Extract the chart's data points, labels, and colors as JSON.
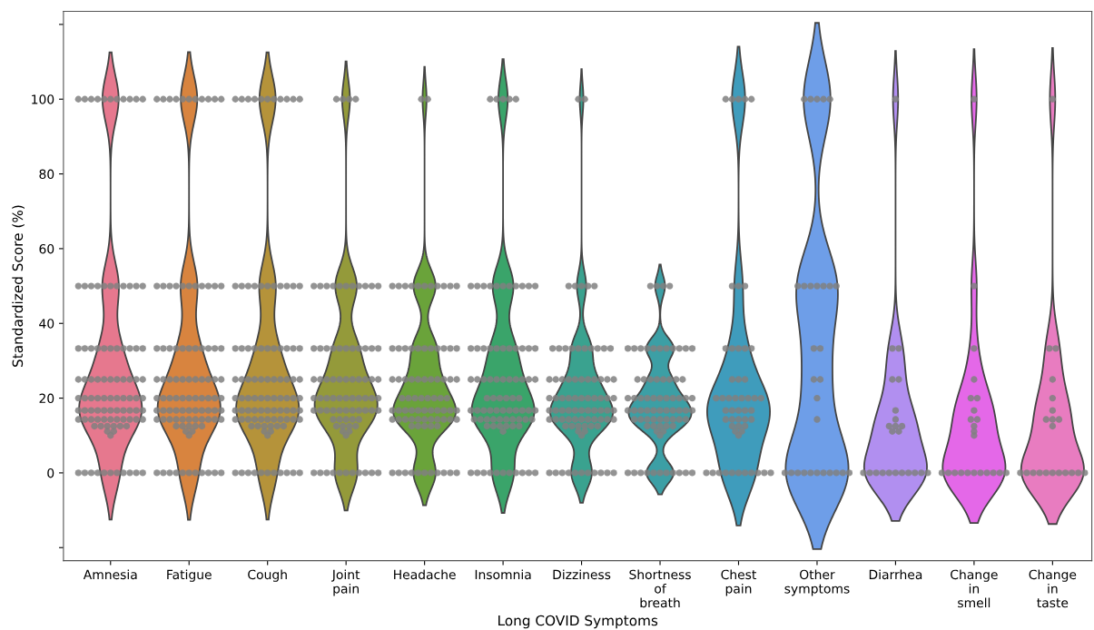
{
  "chart_data": {
    "type": "scatter",
    "xlabel": "Long COVID Symptoms",
    "ylabel": "Standardized Score (%)",
    "categories": [
      "Amnesia",
      "Fatigue",
      "Cough",
      "Joint\npain",
      "Headache",
      "Insomnia",
      "Dizziness",
      "Shortness\nof\nbreath",
      "Chest\npain",
      "Other\nsymptoms",
      "Diarrhea",
      "Change\nin\nsmell",
      "Change\nin\ntaste"
    ],
    "colors": [
      "#e6788e",
      "#d8843f",
      "#b5933a",
      "#949a3a",
      "#6aa33a",
      "#3aa46a",
      "#3aa28f",
      "#3c9fa5",
      "#3f9cbc",
      "#6e9ee8",
      "#b18ff0",
      "#e468e8",
      "#e87cc0"
    ],
    "ylim": [
      -23.5,
      123.5
    ],
    "yticks": [
      {
        "value": -20,
        "label": null
      },
      0,
      20,
      40,
      60,
      80,
      100,
      {
        "value": 120,
        "label": null
      }
    ],
    "grid": false,
    "series": [
      {
        "color": "#808080",
        "x": [
          "Amnesia",
          "Amnesia",
          "Amnesia",
          "Amnesia",
          "Amnesia",
          "Amnesia",
          "Amnesia",
          "Amnesia",
          "Amnesia",
          "Amnesia",
          "Amnesia",
          "Amnesia",
          "Amnesia",
          "Amnesia",
          "Amnesia",
          "Amnesia",
          "Amnesia",
          "Amnesia",
          "Amnesia",
          "Amnesia",
          "Amnesia",
          "Amnesia",
          "Amnesia",
          "Amnesia",
          "Amnesia",
          "Amnesia",
          "Amnesia",
          "Amnesia",
          "Amnesia",
          "Amnesia",
          "Amnesia",
          "Amnesia",
          "Amnesia",
          "Amnesia",
          "Amnesia",
          "Amnesia",
          "Amnesia",
          "Amnesia",
          "Amnesia",
          "Amnesia",
          "Amnesia",
          "Amnesia",
          "Amnesia",
          "Amnesia",
          "Amnesia",
          "Amnesia",
          "Amnesia",
          "Amnesia",
          "Amnesia",
          "Amnesia",
          "Amnesia",
          "Amnesia",
          "Amnesia",
          "Amnesia",
          "Amnesia",
          "Amnesia",
          "Amnesia",
          "Amnesia",
          "Amnesia",
          "Amnesia",
          "Amnesia",
          "Amnesia",
          "Amnesia",
          "Amnesia",
          "Amnesia",
          "Amnesia",
          "Amnesia",
          "Amnesia",
          "Amnesia",
          "Amnesia",
          "Amnesia",
          "Amnesia",
          "Amnesia",
          "Amnesia",
          "Amnesia",
          "Amnesia",
          "Amnesia",
          "Amnesia",
          "Amnesia",
          "Amnesia",
          "Amnesia",
          "Amnesia",
          "Amnesia",
          "Amnesia",
          "Amnesia",
          "Amnesia",
          "Amnesia",
          "Amnesia",
          "Amnesia",
          "Amnesia",
          "Amnesia",
          "Amnesia",
          "Amnesia",
          "Amnesia",
          "Amnesia",
          "Amnesia",
          "Amnesia"
        ],
        "values": [
          100,
          100,
          100,
          100,
          100,
          100,
          100,
          100,
          100,
          100,
          100,
          50,
          50,
          50,
          50,
          50,
          50,
          50,
          50,
          50,
          50,
          50,
          33.3,
          33.3,
          33.3,
          33.3,
          33.3,
          33.3,
          33.3,
          33.3,
          33.3,
          33.3,
          33.3,
          25,
          25,
          25,
          25,
          25,
          25,
          25,
          25,
          25,
          25,
          25,
          20,
          20,
          20,
          20,
          20,
          20,
          20,
          20,
          20,
          20,
          20,
          16.7,
          16.7,
          16.7,
          16.7,
          16.7,
          16.7,
          16.7,
          16.7,
          16.7,
          16.7,
          16.7,
          14.3,
          14.3,
          14.3,
          14.3,
          14.3,
          14.3,
          14.3,
          14.3,
          14.3,
          14.3,
          14.3,
          12.5,
          12.5,
          12.5,
          12.5,
          12.5,
          12.5,
          11.1,
          11.1,
          10,
          0,
          0,
          0,
          0,
          0,
          0,
          0,
          0,
          0,
          0,
          0
        ]
      },
      {
        "color": "#808080",
        "x": [
          "Fatigue",
          "Fatigue",
          "Fatigue",
          "Fatigue",
          "Fatigue",
          "Fatigue",
          "Fatigue",
          "Fatigue",
          "Fatigue",
          "Fatigue",
          "Fatigue",
          "Fatigue",
          "Fatigue",
          "Fatigue",
          "Fatigue",
          "Fatigue",
          "Fatigue",
          "Fatigue",
          "Fatigue",
          "Fatigue",
          "Fatigue",
          "Fatigue",
          "Fatigue",
          "Fatigue",
          "Fatigue",
          "Fatigue",
          "Fatigue",
          "Fatigue",
          "Fatigue",
          "Fatigue",
          "Fatigue",
          "Fatigue",
          "Fatigue",
          "Fatigue",
          "Fatigue",
          "Fatigue",
          "Fatigue",
          "Fatigue",
          "Fatigue",
          "Fatigue",
          "Fatigue",
          "Fatigue",
          "Fatigue",
          "Fatigue",
          "Fatigue",
          "Fatigue",
          "Fatigue",
          "Fatigue",
          "Fatigue",
          "Fatigue",
          "Fatigue",
          "Fatigue",
          "Fatigue",
          "Fatigue",
          "Fatigue",
          "Fatigue",
          "Fatigue",
          "Fatigue",
          "Fatigue",
          "Fatigue",
          "Fatigue",
          "Fatigue",
          "Fatigue",
          "Fatigue",
          "Fatigue",
          "Fatigue",
          "Fatigue",
          "Fatigue",
          "Fatigue",
          "Fatigue",
          "Fatigue",
          "Fatigue",
          "Fatigue",
          "Fatigue",
          "Fatigue",
          "Fatigue",
          "Fatigue",
          "Fatigue",
          "Fatigue",
          "Fatigue",
          "Fatigue",
          "Fatigue",
          "Fatigue",
          "Fatigue",
          "Fatigue",
          "Fatigue",
          "Fatigue",
          "Fatigue",
          "Fatigue",
          "Fatigue",
          "Fatigue",
          "Fatigue",
          "Fatigue",
          "Fatigue",
          "Fatigue",
          "Fatigue"
        ],
        "values": [
          100,
          100,
          100,
          100,
          100,
          100,
          100,
          100,
          100,
          100,
          100,
          50,
          50,
          50,
          50,
          50,
          50,
          50,
          50,
          50,
          50,
          50,
          33.3,
          33.3,
          33.3,
          33.3,
          33.3,
          33.3,
          33.3,
          33.3,
          33.3,
          33.3,
          33.3,
          25,
          25,
          25,
          25,
          25,
          25,
          25,
          25,
          25,
          25,
          25,
          20,
          20,
          20,
          20,
          20,
          20,
          20,
          20,
          20,
          20,
          20,
          16.7,
          16.7,
          16.7,
          16.7,
          16.7,
          16.7,
          16.7,
          16.7,
          16.7,
          16.7,
          16.7,
          14.3,
          14.3,
          14.3,
          14.3,
          14.3,
          14.3,
          14.3,
          14.3,
          14.3,
          14.3,
          14.3,
          12.5,
          12.5,
          12.5,
          12.5,
          12.5,
          11.1,
          11.1,
          10,
          0,
          0,
          0,
          0,
          0,
          0,
          0,
          0,
          0,
          0,
          0
        ]
      },
      {
        "color": "#808080",
        "x": [
          "Cough",
          "Cough",
          "Cough",
          "Cough",
          "Cough",
          "Cough",
          "Cough",
          "Cough",
          "Cough",
          "Cough",
          "Cough",
          "Cough",
          "Cough",
          "Cough",
          "Cough",
          "Cough",
          "Cough",
          "Cough",
          "Cough",
          "Cough",
          "Cough",
          "Cough",
          "Cough",
          "Cough",
          "Cough",
          "Cough",
          "Cough",
          "Cough",
          "Cough",
          "Cough",
          "Cough",
          "Cough",
          "Cough",
          "Cough",
          "Cough",
          "Cough",
          "Cough",
          "Cough",
          "Cough",
          "Cough",
          "Cough",
          "Cough",
          "Cough",
          "Cough",
          "Cough",
          "Cough",
          "Cough",
          "Cough",
          "Cough",
          "Cough",
          "Cough",
          "Cough",
          "Cough",
          "Cough",
          "Cough",
          "Cough",
          "Cough",
          "Cough",
          "Cough",
          "Cough",
          "Cough",
          "Cough",
          "Cough",
          "Cough",
          "Cough",
          "Cough",
          "Cough",
          "Cough",
          "Cough",
          "Cough",
          "Cough",
          "Cough",
          "Cough",
          "Cough",
          "Cough",
          "Cough",
          "Cough",
          "Cough",
          "Cough",
          "Cough",
          "Cough",
          "Cough",
          "Cough",
          "Cough",
          "Cough",
          "Cough",
          "Cough",
          "Cough",
          "Cough",
          "Cough",
          "Cough",
          "Cough",
          "Cough",
          "Cough",
          "Cough",
          "Cough",
          "Cough"
        ],
        "values": [
          100,
          100,
          100,
          100,
          100,
          100,
          100,
          100,
          100,
          100,
          100,
          50,
          50,
          50,
          50,
          50,
          50,
          50,
          50,
          50,
          50,
          50,
          33.3,
          33.3,
          33.3,
          33.3,
          33.3,
          33.3,
          33.3,
          33.3,
          33.3,
          33.3,
          33.3,
          25,
          25,
          25,
          25,
          25,
          25,
          25,
          25,
          25,
          25,
          25,
          20,
          20,
          20,
          20,
          20,
          20,
          20,
          20,
          20,
          20,
          20,
          16.7,
          16.7,
          16.7,
          16.7,
          16.7,
          16.7,
          16.7,
          16.7,
          16.7,
          16.7,
          16.7,
          14.3,
          14.3,
          14.3,
          14.3,
          14.3,
          14.3,
          14.3,
          14.3,
          14.3,
          14.3,
          14.3,
          12.5,
          12.5,
          12.5,
          12.5,
          12.5,
          12.5,
          11.1,
          11.1,
          10,
          0,
          0,
          0,
          0,
          0,
          0,
          0,
          0,
          0,
          0,
          0
        ]
      },
      {
        "color": "#808080",
        "x": [
          "Joint\npain",
          "Joint\npain",
          "Joint\npain",
          "Joint\npain",
          "Joint\npain",
          "Joint\npain",
          "Joint\npain",
          "Joint\npain",
          "Joint\npain",
          "Joint\npain",
          "Joint\npain",
          "Joint\npain",
          "Joint\npain",
          "Joint\npain",
          "Joint\npain",
          "Joint\npain",
          "Joint\npain",
          "Joint\npain",
          "Joint\npain",
          "Joint\npain",
          "Joint\npain",
          "Joint\npain",
          "Joint\npain",
          "Joint\npain",
          "Joint\npain",
          "Joint\npain",
          "Joint\npain",
          "Joint\npain",
          "Joint\npain",
          "Joint\npain",
          "Joint\npain",
          "Joint\npain",
          "Joint\npain",
          "Joint\npain",
          "Joint\npain",
          "Joint\npain",
          "Joint\npain",
          "Joint\npain",
          "Joint\npain",
          "Joint\npain",
          "Joint\npain",
          "Joint\npain",
          "Joint\npain",
          "Joint\npain",
          "Joint\npain",
          "Joint\npain",
          "Joint\npain",
          "Joint\npain",
          "Joint\npain",
          "Joint\npain",
          "Joint\npain",
          "Joint\npain",
          "Joint\npain",
          "Joint\npain",
          "Joint\npain",
          "Joint\npain",
          "Joint\npain",
          "Joint\npain",
          "Joint\npain",
          "Joint\npain",
          "Joint\npain",
          "Joint\npain",
          "Joint\npain",
          "Joint\npain",
          "Joint\npain",
          "Joint\npain",
          "Joint\npain",
          "Joint\npain",
          "Joint\npain",
          "Joint\npain",
          "Joint\npain",
          "Joint\npain",
          "Joint\npain",
          "Joint\npain",
          "Joint\npain",
          "Joint\npain",
          "Joint\npain",
          "Joint\npain",
          "Joint\npain",
          "Joint\npain",
          "Joint\npain",
          "Joint\npain"
        ],
        "values": [
          100,
          100,
          100,
          100,
          50,
          50,
          50,
          50,
          50,
          50,
          50,
          50,
          50,
          50,
          50,
          33.3,
          33.3,
          33.3,
          33.3,
          33.3,
          33.3,
          33.3,
          33.3,
          33.3,
          33.3,
          33.3,
          25,
          25,
          25,
          25,
          25,
          25,
          25,
          25,
          25,
          25,
          25,
          20,
          20,
          20,
          20,
          20,
          20,
          20,
          20,
          20,
          20,
          20,
          16.7,
          16.7,
          16.7,
          16.7,
          16.7,
          16.7,
          16.7,
          16.7,
          16.7,
          16.7,
          16.7,
          14.3,
          14.3,
          14.3,
          14.3,
          14.3,
          12.5,
          12.5,
          12.5,
          12.5,
          11.1,
          11.1,
          10,
          0,
          0,
          0,
          0,
          0,
          0,
          0,
          0,
          0,
          0,
          0
        ]
      },
      {
        "color": "#808080",
        "x": [
          "Headache",
          "Headache",
          "Headache",
          "Headache",
          "Headache",
          "Headache",
          "Headache",
          "Headache",
          "Headache",
          "Headache",
          "Headache",
          "Headache",
          "Headache",
          "Headache",
          "Headache",
          "Headache",
          "Headache",
          "Headache",
          "Headache",
          "Headache",
          "Headache",
          "Headache",
          "Headache",
          "Headache",
          "Headache",
          "Headache",
          "Headache",
          "Headache",
          "Headache",
          "Headache",
          "Headache",
          "Headache",
          "Headache",
          "Headache",
          "Headache",
          "Headache",
          "Headache",
          "Headache",
          "Headache",
          "Headache",
          "Headache",
          "Headache",
          "Headache",
          "Headache",
          "Headache",
          "Headache",
          "Headache",
          "Headache",
          "Headache",
          "Headache",
          "Headache",
          "Headache",
          "Headache",
          "Headache",
          "Headache",
          "Headache",
          "Headache",
          "Headache",
          "Headache",
          "Headache",
          "Headache",
          "Headache",
          "Headache",
          "Headache",
          "Headache",
          "Headache",
          "Headache",
          "Headache",
          "Headache",
          "Headache",
          "Headache",
          "Headache",
          "Headache",
          "Headache",
          "Headache",
          "Headache",
          "Headache",
          "Headache",
          "Headache",
          "Headache",
          "Headache"
        ],
        "values": [
          100,
          100,
          50,
          50,
          50,
          50,
          50,
          50,
          50,
          50,
          50,
          50,
          50,
          33.3,
          33.3,
          33.3,
          33.3,
          33.3,
          33.3,
          33.3,
          33.3,
          33.3,
          33.3,
          33.3,
          25,
          25,
          25,
          25,
          25,
          25,
          25,
          25,
          25,
          25,
          25,
          20,
          20,
          20,
          20,
          20,
          20,
          20,
          20,
          16.7,
          16.7,
          16.7,
          16.7,
          16.7,
          16.7,
          16.7,
          16.7,
          16.7,
          16.7,
          16.7,
          14.3,
          14.3,
          14.3,
          14.3,
          14.3,
          14.3,
          14.3,
          14.3,
          14.3,
          14.3,
          14.3,
          12.5,
          12.5,
          12.5,
          12.5,
          12.5,
          0,
          0,
          0,
          0,
          0,
          0,
          0,
          0,
          0,
          0,
          0
        ]
      },
      {
        "color": "#808080",
        "x": [
          "Insomnia",
          "Insomnia",
          "Insomnia",
          "Insomnia",
          "Insomnia",
          "Insomnia",
          "Insomnia",
          "Insomnia",
          "Insomnia",
          "Insomnia",
          "Insomnia",
          "Insomnia",
          "Insomnia",
          "Insomnia",
          "Insomnia",
          "Insomnia",
          "Insomnia",
          "Insomnia",
          "Insomnia",
          "Insomnia",
          "Insomnia",
          "Insomnia",
          "Insomnia",
          "Insomnia",
          "Insomnia",
          "Insomnia",
          "Insomnia",
          "Insomnia",
          "Insomnia",
          "Insomnia",
          "Insomnia",
          "Insomnia",
          "Insomnia",
          "Insomnia",
          "Insomnia",
          "Insomnia",
          "Insomnia",
          "Insomnia",
          "Insomnia",
          "Insomnia",
          "Insomnia",
          "Insomnia",
          "Insomnia",
          "Insomnia",
          "Insomnia",
          "Insomnia",
          "Insomnia",
          "Insomnia",
          "Insomnia",
          "Insomnia",
          "Insomnia",
          "Insomnia",
          "Insomnia",
          "Insomnia",
          "Insomnia",
          "Insomnia",
          "Insomnia",
          "Insomnia",
          "Insomnia",
          "Insomnia",
          "Insomnia",
          "Insomnia",
          "Insomnia",
          "Insomnia",
          "Insomnia",
          "Insomnia",
          "Insomnia",
          "Insomnia",
          "Insomnia",
          "Insomnia",
          "Insomnia",
          "Insomnia",
          "Insomnia",
          "Insomnia",
          "Insomnia",
          "Insomnia",
          "Insomnia",
          "Insomnia",
          "Insomnia",
          "Insomnia",
          "Insomnia",
          "Insomnia",
          "Insomnia"
        ],
        "values": [
          100,
          100,
          100,
          100,
          100,
          50,
          50,
          50,
          50,
          50,
          50,
          50,
          50,
          50,
          50,
          50,
          33.3,
          33.3,
          33.3,
          33.3,
          33.3,
          33.3,
          33.3,
          33.3,
          33.3,
          33.3,
          33.3,
          25,
          25,
          25,
          25,
          25,
          25,
          25,
          25,
          25,
          25,
          25,
          20,
          20,
          20,
          20,
          20,
          20,
          16.7,
          16.7,
          16.7,
          16.7,
          16.7,
          16.7,
          16.7,
          16.7,
          16.7,
          16.7,
          16.7,
          14.3,
          14.3,
          14.3,
          14.3,
          14.3,
          14.3,
          14.3,
          14.3,
          14.3,
          14.3,
          12.5,
          12.5,
          12.5,
          12.5,
          12.5,
          12.5,
          11.1,
          0,
          0,
          0,
          0,
          0,
          0,
          0,
          0,
          0,
          0,
          0
        ]
      },
      {
        "color": "#808080",
        "x": [
          "Dizziness",
          "Dizziness",
          "Dizziness",
          "Dizziness",
          "Dizziness",
          "Dizziness",
          "Dizziness",
          "Dizziness",
          "Dizziness",
          "Dizziness",
          "Dizziness",
          "Dizziness",
          "Dizziness",
          "Dizziness",
          "Dizziness",
          "Dizziness",
          "Dizziness",
          "Dizziness",
          "Dizziness",
          "Dizziness",
          "Dizziness",
          "Dizziness",
          "Dizziness",
          "Dizziness",
          "Dizziness",
          "Dizziness",
          "Dizziness",
          "Dizziness",
          "Dizziness",
          "Dizziness",
          "Dizziness",
          "Dizziness",
          "Dizziness",
          "Dizziness",
          "Dizziness",
          "Dizziness",
          "Dizziness",
          "Dizziness",
          "Dizziness",
          "Dizziness",
          "Dizziness",
          "Dizziness",
          "Dizziness",
          "Dizziness",
          "Dizziness",
          "Dizziness",
          "Dizziness",
          "Dizziness",
          "Dizziness",
          "Dizziness",
          "Dizziness",
          "Dizziness",
          "Dizziness",
          "Dizziness",
          "Dizziness",
          "Dizziness",
          "Dizziness",
          "Dizziness",
          "Dizziness",
          "Dizziness",
          "Dizziness",
          "Dizziness",
          "Dizziness",
          "Dizziness",
          "Dizziness",
          "Dizziness",
          "Dizziness",
          "Dizziness",
          "Dizziness",
          "Dizziness",
          "Dizziness",
          "Dizziness",
          "Dizziness",
          "Dizziness",
          "Dizziness",
          "Dizziness",
          "Dizziness",
          "Dizziness",
          "Dizziness",
          "Dizziness",
          "Dizziness"
        ],
        "values": [
          100,
          100,
          50,
          50,
          50,
          50,
          50,
          33.3,
          33.3,
          33.3,
          33.3,
          33.3,
          33.3,
          33.3,
          33.3,
          33.3,
          33.3,
          25,
          25,
          25,
          25,
          25,
          25,
          25,
          25,
          25,
          25,
          25,
          20,
          20,
          20,
          20,
          20,
          20,
          20,
          20,
          20,
          20,
          20,
          16.7,
          16.7,
          16.7,
          16.7,
          16.7,
          16.7,
          16.7,
          16.7,
          16.7,
          16.7,
          16.7,
          14.3,
          14.3,
          14.3,
          14.3,
          14.3,
          14.3,
          14.3,
          14.3,
          14.3,
          14.3,
          14.3,
          12.5,
          12.5,
          12.5,
          12.5,
          12.5,
          12.5,
          11.1,
          11.1,
          10,
          0,
          0,
          0,
          0,
          0,
          0,
          0,
          0,
          0,
          0,
          0
        ]
      },
      {
        "color": "#808080",
        "x": [
          "Shortness\nof\nbreath",
          "Shortness\nof\nbreath",
          "Shortness\nof\nbreath",
          "Shortness\nof\nbreath",
          "Shortness\nof\nbreath",
          "Shortness\nof\nbreath",
          "Shortness\nof\nbreath",
          "Shortness\nof\nbreath",
          "Shortness\nof\nbreath",
          "Shortness\nof\nbreath",
          "Shortness\nof\nbreath",
          "Shortness\nof\nbreath",
          "Shortness\nof\nbreath",
          "Shortness\nof\nbreath",
          "Shortness\nof\nbreath",
          "Shortness\nof\nbreath",
          "Shortness\nof\nbreath",
          "Shortness\nof\nbreath",
          "Shortness\nof\nbreath",
          "Shortness\nof\nbreath",
          "Shortness\nof\nbreath",
          "Shortness\nof\nbreath",
          "Shortness\nof\nbreath",
          "Shortness\nof\nbreath",
          "Shortness\nof\nbreath",
          "Shortness\nof\nbreath",
          "Shortness\nof\nbreath",
          "Shortness\nof\nbreath",
          "Shortness\nof\nbreath",
          "Shortness\nof\nbreath",
          "Shortness\nof\nbreath",
          "Shortness\nof\nbreath",
          "Shortness\nof\nbreath",
          "Shortness\nof\nbreath",
          "Shortness\nof\nbreath",
          "Shortness\nof\nbreath",
          "Shortness\nof\nbreath",
          "Shortness\nof\nbreath",
          "Shortness\nof\nbreath",
          "Shortness\nof\nbreath",
          "Shortness\nof\nbreath",
          "Shortness\nof\nbreath",
          "Shortness\nof\nbreath",
          "Shortness\nof\nbreath",
          "Shortness\nof\nbreath",
          "Shortness\nof\nbreath",
          "Shortness\nof\nbreath",
          "Shortness\nof\nbreath",
          "Shortness\nof\nbreath",
          "Shortness\nof\nbreath",
          "Shortness\nof\nbreath",
          "Shortness\nof\nbreath",
          "Shortness\nof\nbreath",
          "Shortness\nof\nbreath",
          "Shortness\nof\nbreath",
          "Shortness\nof\nbreath",
          "Shortness\nof\nbreath",
          "Shortness\nof\nbreath",
          "Shortness\nof\nbreath",
          "Shortness\nof\nbreath",
          "Shortness\nof\nbreath",
          "Shortness\nof\nbreath",
          "Shortness\nof\nbreath",
          "Shortness\nof\nbreath",
          "Shortness\nof\nbreath",
          "Shortness\nof\nbreath",
          "Shortness\nof\nbreath",
          "Shortness\nof\nbreath",
          "Shortness\nof\nbreath",
          "Shortness\nof\nbreath",
          "Shortness\nof\nbreath",
          "Shortness\nof\nbreath",
          "Shortness\nof\nbreath"
        ],
        "values": [
          50,
          50,
          50,
          50,
          33.3,
          33.3,
          33.3,
          33.3,
          33.3,
          33.3,
          33.3,
          33.3,
          33.3,
          33.3,
          33.3,
          25,
          25,
          25,
          25,
          25,
          25,
          25,
          25,
          20,
          20,
          20,
          20,
          20,
          20,
          20,
          20,
          20,
          20,
          20,
          16.7,
          16.7,
          16.7,
          16.7,
          16.7,
          16.7,
          16.7,
          16.7,
          16.7,
          16.7,
          16.7,
          14.3,
          14.3,
          14.3,
          14.3,
          14.3,
          14.3,
          14.3,
          14.3,
          14.3,
          12.5,
          12.5,
          12.5,
          12.5,
          12.5,
          11.1,
          11.1,
          10,
          0,
          0,
          0,
          0,
          0,
          0,
          0,
          0,
          0,
          0,
          0
        ]
      },
      {
        "color": "#808080",
        "x": [
          "Chest\npain",
          "Chest\npain",
          "Chest\npain",
          "Chest\npain",
          "Chest\npain",
          "Chest\npain",
          "Chest\npain",
          "Chest\npain",
          "Chest\npain",
          "Chest\npain",
          "Chest\npain",
          "Chest\npain",
          "Chest\npain",
          "Chest\npain",
          "Chest\npain",
          "Chest\npain",
          "Chest\npain",
          "Chest\npain",
          "Chest\npain",
          "Chest\npain",
          "Chest\npain",
          "Chest\npain",
          "Chest\npain",
          "Chest\npain",
          "Chest\npain",
          "Chest\npain",
          "Chest\npain",
          "Chest\npain",
          "Chest\npain",
          "Chest\npain",
          "Chest\npain",
          "Chest\npain",
          "Chest\npain",
          "Chest\npain",
          "Chest\npain",
          "Chest\npain",
          "Chest\npain",
          "Chest\npain",
          "Chest\npain",
          "Chest\npain",
          "Chest\npain",
          "Chest\npain",
          "Chest\npain",
          "Chest\npain",
          "Chest\npain",
          "Chest\npain",
          "Chest\npain",
          "Chest\npain",
          "Chest\npain",
          "Chest\npain",
          "Chest\npain"
        ],
        "values": [
          100,
          100,
          100,
          100,
          100,
          50,
          50,
          50,
          33.3,
          33.3,
          33.3,
          33.3,
          33.3,
          25,
          25,
          25,
          20,
          20,
          20,
          20,
          20,
          20,
          20,
          20,
          16.7,
          16.7,
          16.7,
          16.7,
          16.7,
          14.3,
          14.3,
          14.3,
          14.3,
          14.3,
          12.5,
          12.5,
          12.5,
          11.1,
          11.1,
          10,
          0,
          0,
          0,
          0,
          0,
          0,
          0,
          0,
          0,
          0,
          0
        ]
      },
      {
        "color": "#808080",
        "x": [
          "Other\nsymptoms",
          "Other\nsymptoms",
          "Other\nsymptoms",
          "Other\nsymptoms",
          "Other\nsymptoms",
          "Other\nsymptoms",
          "Other\nsymptoms",
          "Other\nsymptoms",
          "Other\nsymptoms",
          "Other\nsymptoms",
          "Other\nsymptoms",
          "Other\nsymptoms",
          "Other\nsymptoms",
          "Other\nsymptoms",
          "Other\nsymptoms",
          "Other\nsymptoms",
          "Other\nsymptoms",
          "Other\nsymptoms",
          "Other\nsymptoms",
          "Other\nsymptoms",
          "Other\nsymptoms",
          "Other\nsymptoms",
          "Other\nsymptoms",
          "Other\nsymptoms",
          "Other\nsymptoms",
          "Other\nsymptoms",
          "Other\nsymptoms",
          "Other\nsymptoms",
          "Other\nsymptoms"
        ],
        "values": [
          100,
          100,
          100,
          100,
          100,
          50,
          50,
          50,
          50,
          50,
          50,
          50,
          33.3,
          33.3,
          25,
          25,
          20,
          14.3,
          0,
          0,
          0,
          0,
          0,
          0,
          0,
          0,
          0,
          0,
          0
        ]
      },
      {
        "color": "#808080",
        "x": [
          "Diarrhea",
          "Diarrhea",
          "Diarrhea",
          "Diarrhea",
          "Diarrhea",
          "Diarrhea",
          "Diarrhea",
          "Diarrhea",
          "Diarrhea",
          "Diarrhea",
          "Diarrhea",
          "Diarrhea",
          "Diarrhea",
          "Diarrhea",
          "Diarrhea",
          "Diarrhea",
          "Diarrhea",
          "Diarrhea",
          "Diarrhea",
          "Diarrhea",
          "Diarrhea",
          "Diarrhea",
          "Diarrhea"
        ],
        "values": [
          100,
          33.3,
          33.3,
          25,
          25,
          16.7,
          14.3,
          12.5,
          12.5,
          12.5,
          11.1,
          11.1,
          0,
          0,
          0,
          0,
          0,
          0,
          0,
          0,
          0,
          0,
          0
        ]
      },
      {
        "color": "#808080",
        "x": [
          "Change\nin\nsmell",
          "Change\nin\nsmell",
          "Change\nin\nsmell",
          "Change\nin\nsmell",
          "Change\nin\nsmell",
          "Change\nin\nsmell",
          "Change\nin\nsmell",
          "Change\nin\nsmell",
          "Change\nin\nsmell",
          "Change\nin\nsmell",
          "Change\nin\nsmell",
          "Change\nin\nsmell",
          "Change\nin\nsmell",
          "Change\nin\nsmell",
          "Change\nin\nsmell",
          "Change\nin\nsmell",
          "Change\nin\nsmell",
          "Change\nin\nsmell",
          "Change\nin\nsmell",
          "Change\nin\nsmell",
          "Change\nin\nsmell",
          "Change\nin\nsmell",
          "Change\nin\nsmell"
        ],
        "values": [
          100,
          50,
          33.3,
          25,
          20,
          20,
          16.7,
          14.3,
          14.3,
          12.5,
          11.1,
          10,
          0,
          0,
          0,
          0,
          0,
          0,
          0,
          0,
          0,
          0,
          0
        ]
      },
      {
        "color": "#808080",
        "x": [
          "Change\nin\ntaste",
          "Change\nin\ntaste",
          "Change\nin\ntaste",
          "Change\nin\ntaste",
          "Change\nin\ntaste",
          "Change\nin\ntaste",
          "Change\nin\ntaste",
          "Change\nin\ntaste",
          "Change\nin\ntaste",
          "Change\nin\ntaste",
          "Change\nin\ntaste",
          "Change\nin\ntaste",
          "Change\nin\ntaste",
          "Change\nin\ntaste",
          "Change\nin\ntaste",
          "Change\nin\ntaste",
          "Change\nin\ntaste",
          "Change\nin\ntaste",
          "Change\nin\ntaste",
          "Change\nin\ntaste",
          "Change\nin\ntaste"
        ],
        "values": [
          100,
          33.3,
          33.3,
          25,
          20,
          16.7,
          14.3,
          14.3,
          14.3,
          12.5,
          0,
          0,
          0,
          0,
          0,
          0,
          0,
          0,
          0,
          0,
          0
        ]
      }
    ]
  }
}
